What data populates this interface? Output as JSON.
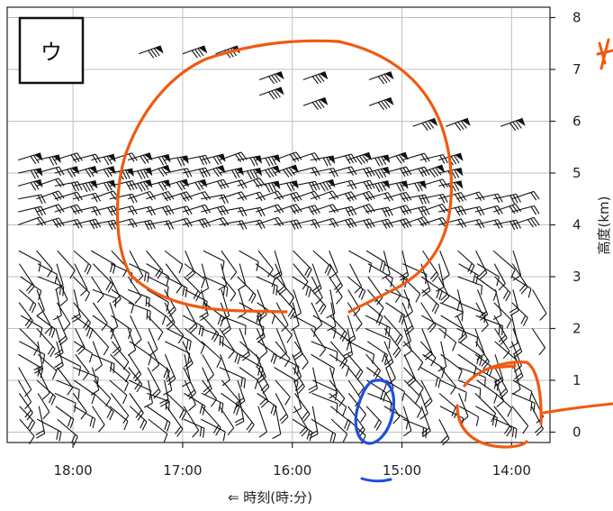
{
  "chart_data": {
    "type": "wind-profile",
    "panel_label": "ウ",
    "xlabel": "⇐ 時刻(時:分)",
    "ylabel": "高度(km)",
    "x_axis": {
      "direction": "reversed",
      "tick_labels": [
        "18:00",
        "17:00",
        "16:00",
        "15:00",
        "14:00"
      ],
      "tick_hours": [
        18,
        17,
        16,
        15,
        14
      ],
      "range_hours": [
        18.6,
        13.65
      ]
    },
    "y_axis": {
      "position": "right",
      "ticks": [
        0,
        1,
        2,
        3,
        4,
        5,
        6,
        7,
        8
      ],
      "range_km": [
        -0.2,
        8.2
      ]
    },
    "grid": true,
    "upper_layer": {
      "barb_heights_km": [
        4.0,
        4.25,
        4.5,
        4.75,
        5.0,
        5.25
      ],
      "barb_style": "multiple full barbs and pennants (strong westerly winds)"
    },
    "lower_layer": {
      "barb_heights_km": [
        0.25,
        0.5,
        0.75,
        1.0,
        1.25,
        1.5,
        1.75,
        2.0,
        2.25,
        2.5,
        2.75,
        3.0,
        3.25,
        3.5
      ],
      "barb_style": "few barbs (weak winds)"
    },
    "annotations": [
      {
        "kind": "freehand-ellipse",
        "color": "#f05a10",
        "region": "upper-center"
      },
      {
        "kind": "freehand-ellipse",
        "color": "#1e50d8",
        "region": "near-15:00-low"
      },
      {
        "kind": "freehand-ellipse",
        "color": "#f05a10",
        "region": "near-14:00-low"
      },
      {
        "kind": "underline",
        "color": "#1e50d8",
        "target": "15:00"
      }
    ]
  },
  "colors": {
    "annotation_orange": "#f05a10",
    "annotation_blue": "#1e50d8",
    "grid": "#bfbfbf",
    "frame": "#222222"
  }
}
